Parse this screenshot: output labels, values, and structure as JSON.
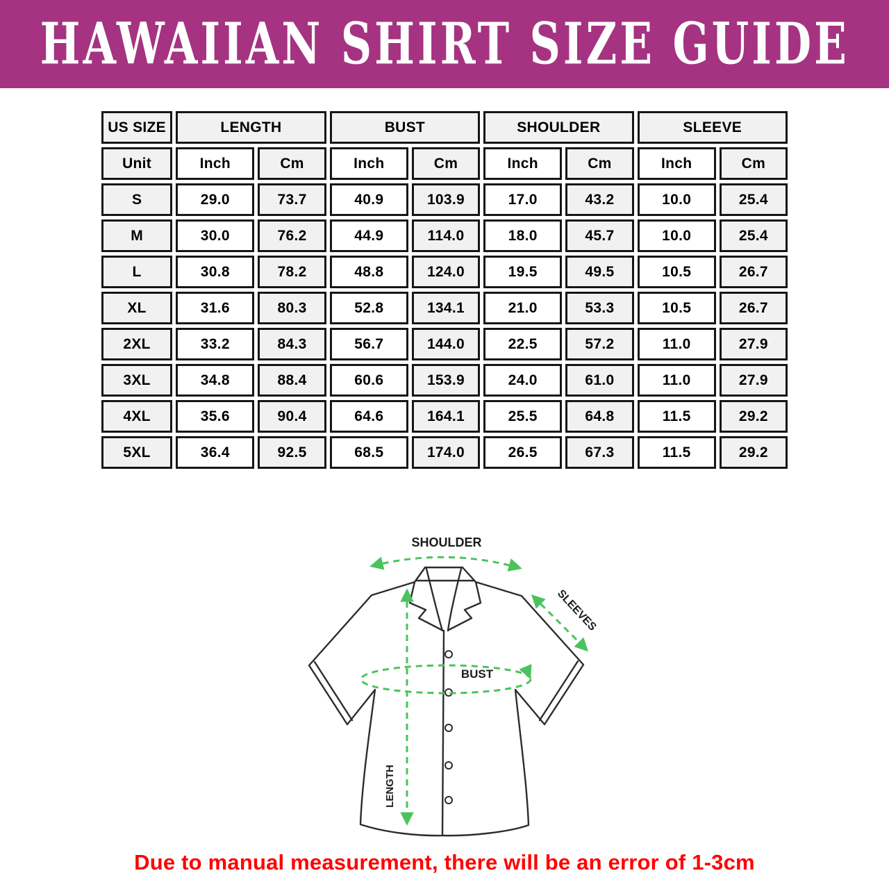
{
  "banner": {
    "title": "HAWAIIAN SHIRT SIZE GUIDE",
    "bg_color": "#A53381",
    "text_color": "#FFFFFF"
  },
  "size_table": {
    "column_groups": [
      {
        "label": "US SIZE",
        "span": 1
      },
      {
        "label": "LENGTH",
        "span": 2
      },
      {
        "label": "BUST",
        "span": 2
      },
      {
        "label": "SHOULDER",
        "span": 2
      },
      {
        "label": "SLEEVE",
        "span": 2
      }
    ],
    "unit_row": [
      "Unit",
      "Inch",
      "Cm",
      "Inch",
      "Cm",
      "Inch",
      "Cm",
      "Inch",
      "Cm"
    ],
    "rows": [
      {
        "size": "S",
        "values": [
          "29.0",
          "73.7",
          "40.9",
          "103.9",
          "17.0",
          "43.2",
          "10.0",
          "25.4"
        ]
      },
      {
        "size": "M",
        "values": [
          "30.0",
          "76.2",
          "44.9",
          "114.0",
          "18.0",
          "45.7",
          "10.0",
          "25.4"
        ]
      },
      {
        "size": "L",
        "values": [
          "30.8",
          "78.2",
          "48.8",
          "124.0",
          "19.5",
          "49.5",
          "10.5",
          "26.7"
        ]
      },
      {
        "size": "XL",
        "values": [
          "31.6",
          "80.3",
          "52.8",
          "134.1",
          "21.0",
          "53.3",
          "10.5",
          "26.7"
        ]
      },
      {
        "size": "2XL",
        "values": [
          "33.2",
          "84.3",
          "56.7",
          "144.0",
          "22.5",
          "57.2",
          "11.0",
          "27.9"
        ]
      },
      {
        "size": "3XL",
        "values": [
          "34.8",
          "88.4",
          "60.6",
          "153.9",
          "24.0",
          "61.0",
          "11.0",
          "27.9"
        ]
      },
      {
        "size": "4XL",
        "values": [
          "35.6",
          "90.4",
          "64.6",
          "164.1",
          "25.5",
          "64.8",
          "11.5",
          "29.2"
        ]
      },
      {
        "size": "5XL",
        "values": [
          "36.4",
          "92.5",
          "68.5",
          "174.0",
          "26.5",
          "67.3",
          "11.5",
          "29.2"
        ]
      }
    ]
  },
  "diagram": {
    "arrow_color": "#4CC25D",
    "labels": {
      "shoulder": "SHOULDER",
      "sleeves": "SLEEVES",
      "bust": "BUST",
      "length": "LENGTH"
    }
  },
  "footnote": {
    "text": "Due to manual measurement, there will be an error of 1-3cm",
    "color": "#FF0000"
  }
}
